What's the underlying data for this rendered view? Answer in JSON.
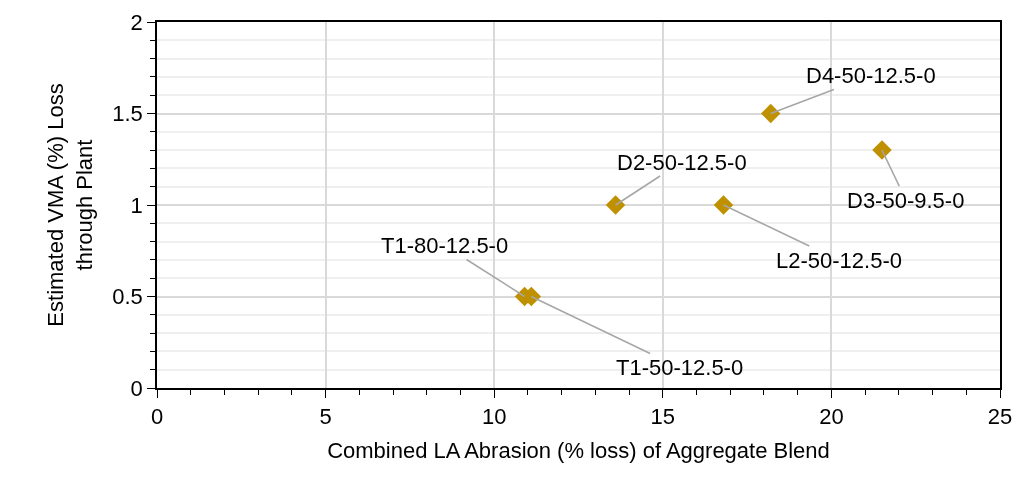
{
  "chart_data": {
    "type": "scatter",
    "xlabel": "Combined LA Abrasion (% loss) of Aggregate Blend",
    "ylabel": "Estimated VMA (%) Loss\nthrough Plant",
    "x": [
      18.2,
      21.5,
      13.6,
      16.8,
      10.9,
      11.1
    ],
    "series": [
      {
        "color": "#bf9000",
        "values": [
          1.5,
          1.3,
          1.0,
          1.0,
          0.5,
          0.5
        ]
      }
    ],
    "annotations": [
      {
        "text": "D4-50-12.5-0",
        "x": 18.2,
        "y": 1.5
      },
      {
        "text": "D3-50-9.5-0",
        "x": 21.5,
        "y": 1.3
      },
      {
        "text": "D2-50-12.5-0",
        "x": 13.6,
        "y": 1.0
      },
      {
        "text": "L2-50-12.5-0",
        "x": 16.8,
        "y": 1.0
      },
      {
        "text": "T1-80-12.5-0",
        "x": 10.9,
        "y": 0.5
      },
      {
        "text": "T1-50-12.5-0",
        "x": 11.1,
        "y": 0.5
      }
    ],
    "xlim": [
      0,
      25
    ],
    "xticks": [
      0,
      5,
      10,
      15,
      20,
      25
    ],
    "ylim": [
      0,
      2
    ],
    "yticks": [
      0,
      0.5,
      1,
      1.5,
      2
    ],
    "grid": true,
    "marker": "diamond",
    "legend": false
  }
}
